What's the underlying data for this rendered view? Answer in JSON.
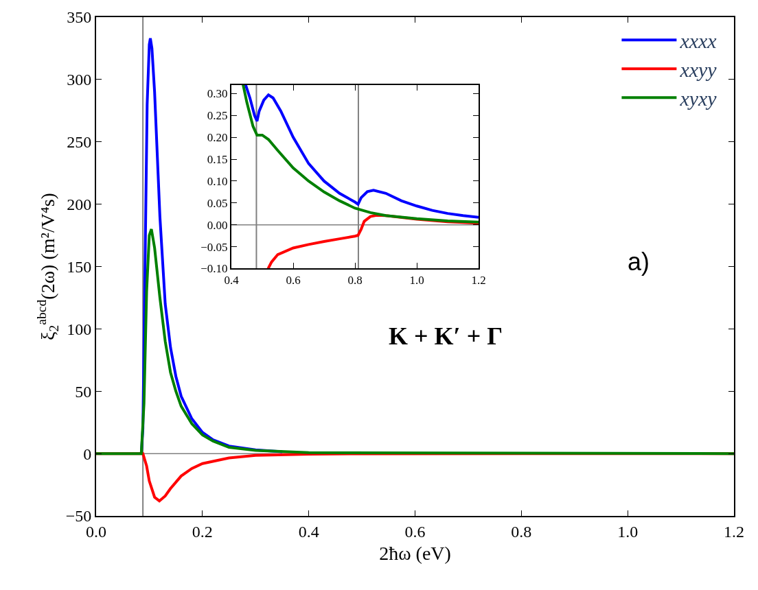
{
  "chart_data": [
    {
      "type": "line",
      "xlabel": "2ħω (eV)",
      "ylabel": "ξ$_{2}$$^{abcd}$(2ω) (m²/V⁴s)",
      "xlim": [
        0,
        1.2
      ],
      "xticks": [
        {
          "value": 0,
          "label": "0.0"
        },
        {
          "value": 0.2,
          "label": "0.2"
        },
        {
          "value": 0.4,
          "label": "0.4"
        },
        {
          "value": 0.6,
          "label": "0.6"
        },
        {
          "value": 0.8,
          "label": "0.8"
        },
        {
          "value": 1.0,
          "label": "1.0"
        },
        {
          "value": 1.2,
          "label": "1.2"
        }
      ],
      "ylim": [
        -50,
        350
      ],
      "yticks": [
        -50,
        0,
        50,
        100,
        150,
        200,
        250,
        300,
        350
      ],
      "legend": "top right",
      "marker": "none",
      "line_style": "solid",
      "annotations": [
        "a)",
        "K + K′ + Γ"
      ],
      "ref_lines": [
        {
          "axis": "x",
          "value": 0.088,
          "color": "#808080"
        },
        {
          "axis": "y",
          "value": 0,
          "color": "#808080"
        }
      ],
      "series": [
        {
          "name": "xxxx",
          "color": "#0000ff",
          "x": [
            0.085,
            0.088,
            0.092,
            0.096,
            0.1,
            0.102,
            0.105,
            0.11,
            0.12,
            0.13,
            0.14,
            0.15,
            0.16,
            0.18,
            0.2,
            0.22,
            0.25,
            0.3,
            0.35
          ],
          "values": [
            0,
            20,
            150,
            280,
            328,
            333,
            325,
            290,
            190,
            120,
            85,
            62,
            46,
            28,
            17,
            11,
            6,
            3,
            1.5
          ]
        },
        {
          "name": "xxyy",
          "color": "#ff0000",
          "x": [
            0,
            0.05,
            0.088,
            0.095,
            0.1,
            0.11,
            0.119,
            0.13,
            0.14,
            0.16,
            0.18,
            0.2,
            0.25,
            0.3,
            0.4,
            0.5,
            0.8,
            1.2
          ],
          "values": [
            0,
            0,
            0,
            -10,
            -22,
            -35,
            -38,
            -34,
            -28,
            -18,
            -12,
            -8,
            -3.5,
            -1.5,
            -0.5,
            -0.2,
            0,
            0
          ]
        },
        {
          "name": "xyxy",
          "color": "#008000",
          "x": [
            0,
            0.05,
            0.085,
            0.09,
            0.095,
            0.1,
            0.104,
            0.11,
            0.12,
            0.13,
            0.14,
            0.15,
            0.16,
            0.18,
            0.2,
            0.22,
            0.25,
            0.3,
            0.4,
            1.2
          ],
          "values": [
            0,
            0,
            0,
            40,
            130,
            175,
            180,
            165,
            125,
            90,
            65,
            50,
            38,
            24,
            15,
            10,
            5,
            2.5,
            0.7,
            0
          ]
        }
      ]
    },
    {
      "type": "line",
      "xlim": [
        0.4,
        1.2
      ],
      "xticks": [
        {
          "value": 0.4,
          "label": "0.4"
        },
        {
          "value": 0.6,
          "label": "0.6"
        },
        {
          "value": 0.8,
          "label": "0.8"
        },
        {
          "value": 1.0,
          "label": "1.0"
        },
        {
          "value": 1.2,
          "label": "1.2"
        }
      ],
      "ylim": [
        -0.1,
        0.32
      ],
      "yticks": [
        {
          "value": -0.1,
          "label": "−0.10"
        },
        {
          "value": -0.05,
          "label": "−0.05"
        },
        {
          "value": 0,
          "label": "0.00"
        },
        {
          "value": 0.05,
          "label": "0.05"
        },
        {
          "value": 0.1,
          "label": "0.10"
        },
        {
          "value": 0.15,
          "label": "0.15"
        },
        {
          "value": 0.2,
          "label": "0.20"
        },
        {
          "value": 0.25,
          "label": "0.25"
        },
        {
          "value": 0.3,
          "label": "0.30"
        }
      ],
      "marker": "none",
      "line_style": "solid",
      "ref_lines": [
        {
          "axis": "x",
          "value": 0.481,
          "color": "#808080"
        },
        {
          "axis": "x",
          "value": 0.811,
          "color": "#808080"
        },
        {
          "axis": "y",
          "value": 0,
          "color": "#808080"
        }
      ],
      "series": [
        {
          "color": "#0000ff",
          "x": [
            0.446,
            0.46,
            0.475,
            0.483,
            0.49,
            0.505,
            0.52,
            0.535,
            0.56,
            0.6,
            0.65,
            0.7,
            0.75,
            0.8,
            0.81,
            0.82,
            0.84,
            0.86,
            0.9,
            0.95,
            1.0,
            1.05,
            1.1,
            1.15,
            1.2
          ],
          "values": [
            0.32,
            0.29,
            0.25,
            0.237,
            0.26,
            0.285,
            0.297,
            0.29,
            0.26,
            0.2,
            0.14,
            0.1,
            0.072,
            0.052,
            0.047,
            0.062,
            0.076,
            0.079,
            0.072,
            0.055,
            0.043,
            0.033,
            0.026,
            0.021,
            0.017
          ]
        },
        {
          "color": "#ff0000",
          "x": [
            0.519,
            0.53,
            0.55,
            0.6,
            0.65,
            0.7,
            0.75,
            0.8,
            0.81,
            0.82,
            0.83,
            0.85,
            0.87,
            0.9,
            1.0,
            1.1,
            1.2
          ],
          "values": [
            -0.1,
            -0.085,
            -0.068,
            -0.053,
            -0.045,
            -0.038,
            -0.032,
            -0.026,
            -0.024,
            -0.01,
            0.008,
            0.019,
            0.022,
            0.021,
            0.013,
            0.007,
            0.004
          ]
        },
        {
          "color": "#008000",
          "x": [
            0.438,
            0.45,
            0.47,
            0.483,
            0.5,
            0.52,
            0.55,
            0.6,
            0.65,
            0.7,
            0.75,
            0.8,
            0.85,
            0.9,
            1.0,
            1.1,
            1.2
          ],
          "values": [
            0.32,
            0.28,
            0.225,
            0.205,
            0.205,
            0.195,
            0.17,
            0.13,
            0.1,
            0.075,
            0.055,
            0.038,
            0.028,
            0.021,
            0.014,
            0.009,
            0.006
          ]
        }
      ]
    }
  ]
}
